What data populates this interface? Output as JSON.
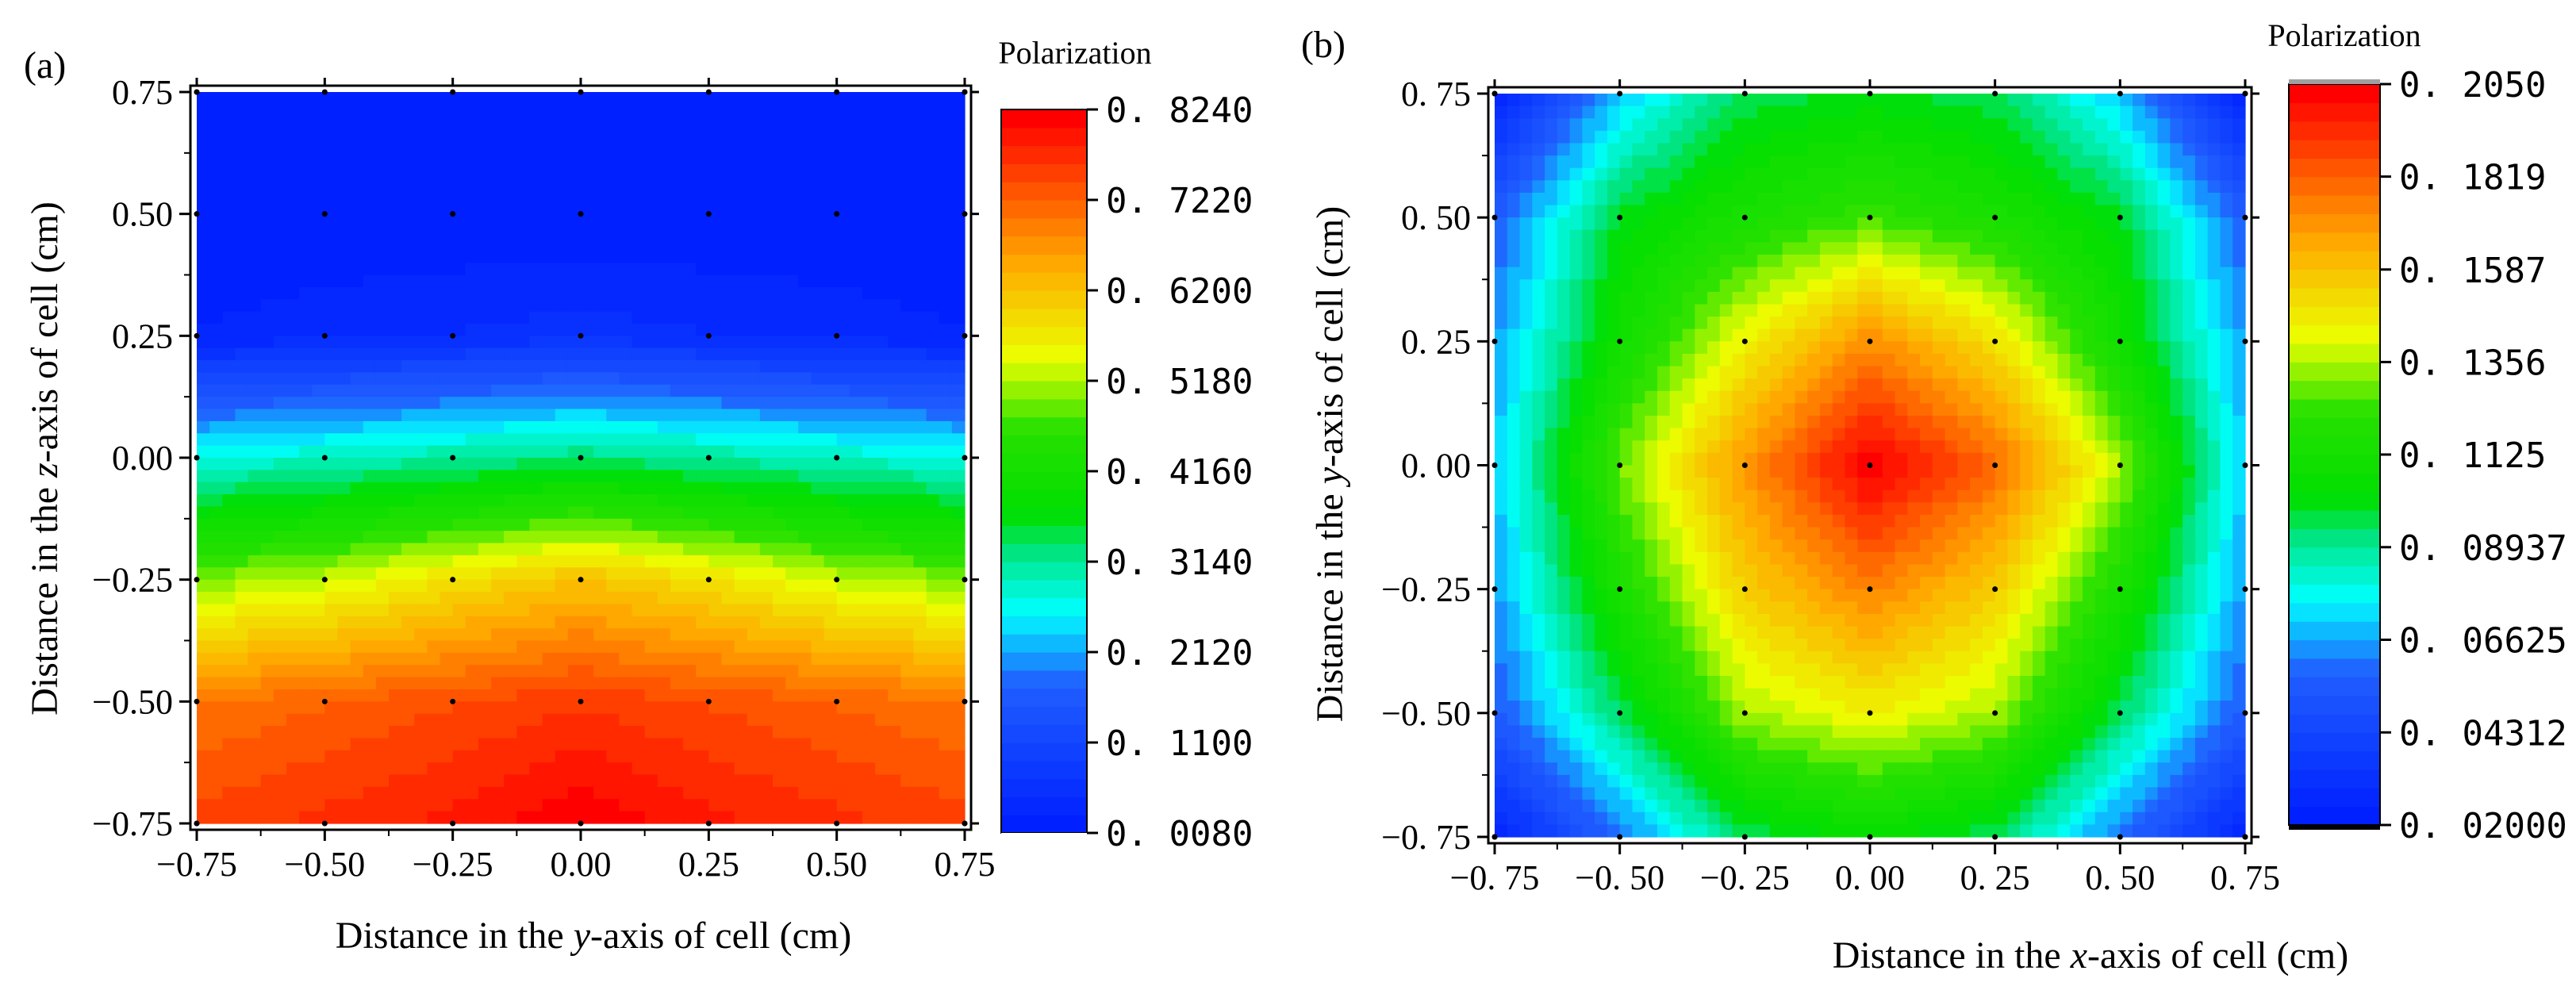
{
  "chart_data": [
    {
      "type": "heatmap",
      "panel_label": "(a)",
      "xlabel_parts": [
        "Distance in the ",
        "y",
        "-axis of cell (cm)"
      ],
      "ylabel_parts": [
        "Distance in the ",
        "z",
        "-axis of cell (cm)"
      ],
      "xlim": [
        -0.75,
        0.75
      ],
      "ylim": [
        -0.75,
        0.75
      ],
      "x_tick_labels": [
        "−0.75",
        "−0.50",
        "−0.25",
        "0.00",
        "0.25",
        "0.50",
        "0.75"
      ],
      "y_tick_labels": [
        "0.75",
        "0.50",
        "0.25",
        "0.00",
        "−0.25",
        "−0.50",
        "−0.75"
      ],
      "x": [
        -0.75,
        -0.5,
        -0.25,
        0.0,
        0.25,
        0.5,
        0.75
      ],
      "y": [
        0.75,
        0.5,
        0.25,
        0.0,
        -0.25,
        -0.5,
        -0.75
      ],
      "z_note": "rows ordered top (y=0.75) to bottom (y=-0.75)",
      "values": [
        [
          0.01,
          0.01,
          0.01,
          0.01,
          0.01,
          0.01,
          0.01
        ],
        [
          0.01,
          0.01,
          0.01,
          0.01,
          0.01,
          0.01,
          0.01
        ],
        [
          0.03,
          0.04,
          0.05,
          0.06,
          0.05,
          0.04,
          0.03
        ],
        [
          0.27,
          0.29,
          0.31,
          0.33,
          0.31,
          0.29,
          0.27
        ],
        [
          0.5,
          0.53,
          0.58,
          0.62,
          0.58,
          0.53,
          0.5
        ],
        [
          0.7,
          0.72,
          0.74,
          0.76,
          0.74,
          0.72,
          0.7
        ],
        [
          0.75,
          0.77,
          0.79,
          0.82,
          0.79,
          0.77,
          0.75
        ]
      ],
      "sample_points": {
        "x": [
          -0.5,
          -0.25,
          0.0,
          0.25,
          0.5
        ],
        "y": [
          0.5,
          0.25,
          0.0,
          -0.25,
          -0.5
        ]
      },
      "edge_points": {
        "x": [
          -0.75,
          -0.5,
          -0.25,
          0.0,
          0.25,
          0.5,
          0.75
        ],
        "y": [
          0.75,
          0.5,
          0.25,
          0.0,
          -0.25,
          -0.5,
          -0.75
        ]
      },
      "colorbar": {
        "title": "Polarization",
        "min": 0.008,
        "max": 0.824,
        "tick_values": [
          0.824,
          0.722,
          0.62,
          0.518,
          0.416,
          0.314,
          0.212,
          0.11,
          0.008
        ],
        "tick_labels": [
          "0. 8240",
          "0. 7220",
          "0. 6200",
          "0. 5180",
          "0. 4160",
          "0. 3140",
          "0. 2120",
          "0. 1100",
          "0. 0080"
        ],
        "levels": 40
      }
    },
    {
      "type": "heatmap",
      "panel_label": "(b)",
      "xlabel_parts": [
        "Distance in the ",
        "x",
        "-axis of cell (cm)"
      ],
      "ylabel_parts": [
        "Distance in the ",
        "y",
        "-axis of cell (cm)"
      ],
      "xlim": [
        -0.75,
        0.75
      ],
      "ylim": [
        -0.75,
        0.75
      ],
      "x_tick_labels": [
        "−0. 75",
        "−0. 50",
        "−0. 25",
        "0. 00",
        "0. 25",
        "0. 50",
        "0. 75"
      ],
      "y_tick_labels": [
        "0. 75",
        "0. 50",
        "0. 25",
        "0. 00",
        "−0. 25",
        "−0. 50",
        "−0. 75"
      ],
      "x": [
        -0.75,
        -0.5,
        -0.25,
        0.0,
        0.25,
        0.5,
        0.75
      ],
      "y": [
        0.75,
        0.5,
        0.25,
        0.0,
        -0.25,
        -0.5,
        -0.75
      ],
      "z_note": "rows ordered top (y=0.75) to bottom (y=-0.75)",
      "values": [
        [
          0.025,
          0.07,
          0.095,
          0.1,
          0.095,
          0.07,
          0.025
        ],
        [
          0.055,
          0.1,
          0.115,
          0.125,
          0.115,
          0.1,
          0.055
        ],
        [
          0.065,
          0.11,
          0.145,
          0.172,
          0.15,
          0.11,
          0.065
        ],
        [
          0.07,
          0.13,
          0.17,
          0.205,
          0.18,
          0.135,
          0.07
        ],
        [
          0.065,
          0.115,
          0.155,
          0.175,
          0.155,
          0.115,
          0.065
        ],
        [
          0.055,
          0.095,
          0.135,
          0.145,
          0.135,
          0.095,
          0.055
        ],
        [
          0.025,
          0.06,
          0.095,
          0.105,
          0.095,
          0.06,
          0.025
        ]
      ],
      "sample_points": {
        "x": [
          -0.5,
          -0.25,
          0.0,
          0.25,
          0.5
        ],
        "y": [
          0.5,
          0.25,
          0.0,
          -0.25,
          -0.5
        ]
      },
      "edge_points": {
        "x": [
          -0.75,
          -0.5,
          -0.25,
          0.0,
          0.25,
          0.5,
          0.75
        ],
        "y": [
          0.75,
          0.5,
          0.25,
          0.0,
          -0.25,
          -0.5,
          -0.75
        ]
      },
      "colorbar": {
        "title": "Polarization",
        "min": 0.02,
        "max": 0.205,
        "tick_values": [
          0.205,
          0.1819,
          0.1587,
          0.1356,
          0.1125,
          0.08937,
          0.06625,
          0.04312,
          0.02
        ],
        "tick_labels": [
          "0. 2050",
          "0. 1819",
          "0. 1587",
          "0. 1356",
          "0. 1125",
          "0. 08937",
          "0. 06625",
          "0. 04312",
          "0. 02000"
        ],
        "levels": 40
      }
    }
  ]
}
